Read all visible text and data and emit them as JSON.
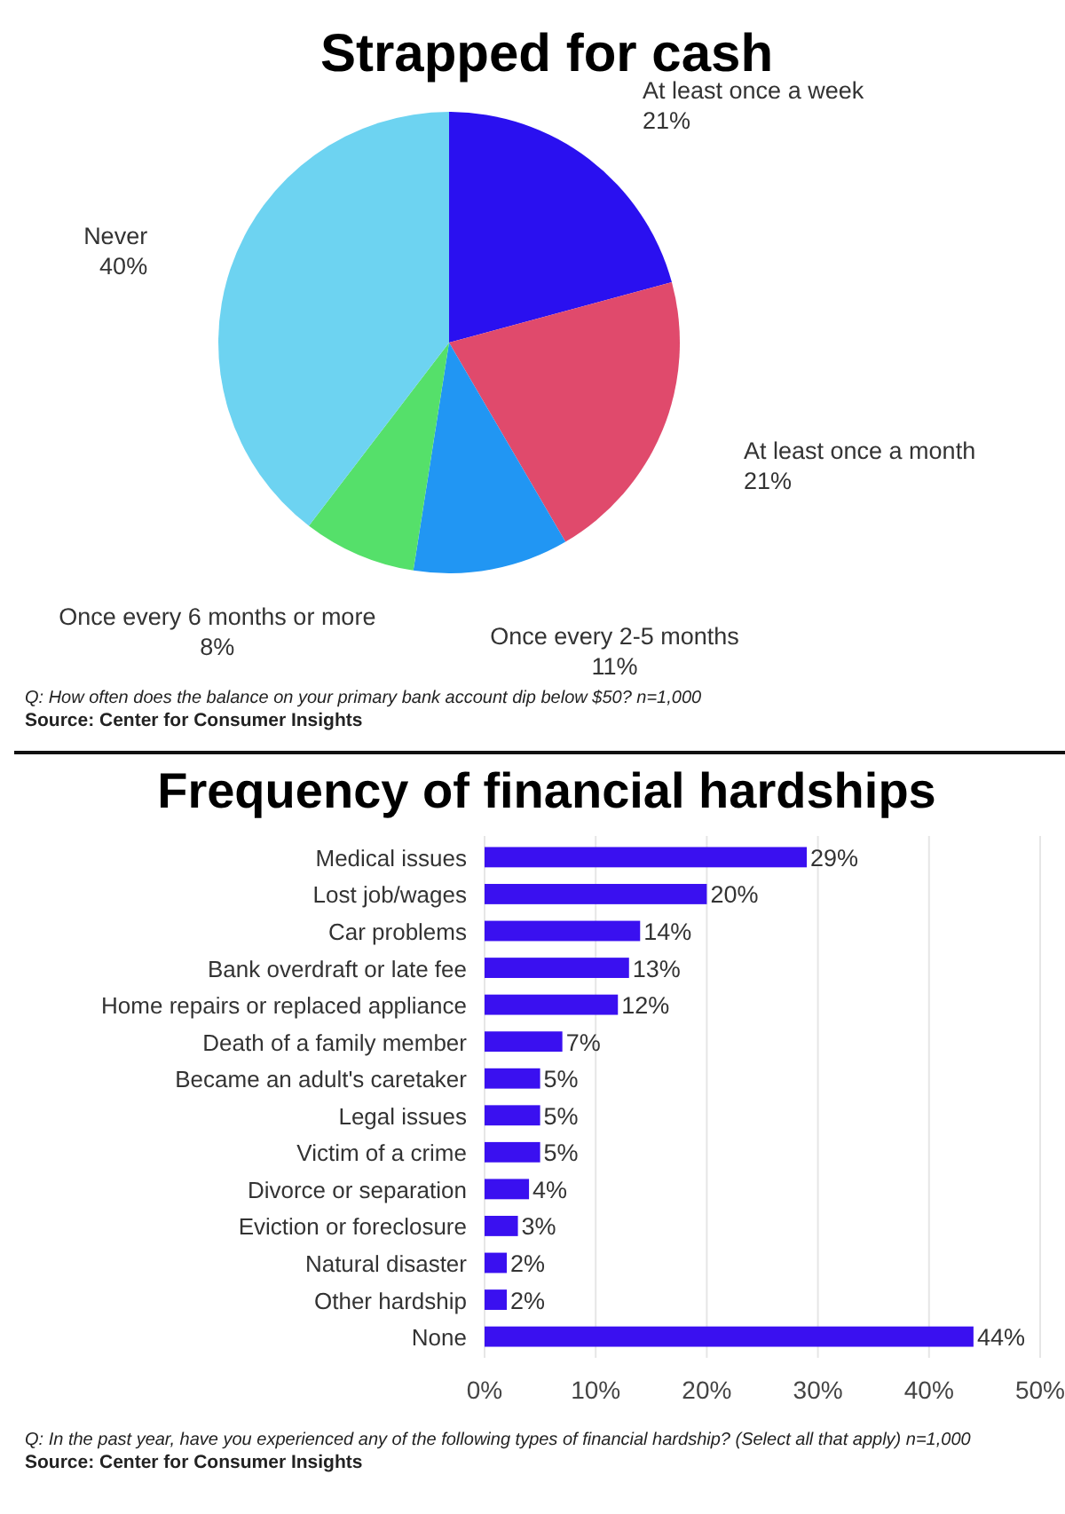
{
  "chart_data": [
    {
      "type": "pie",
      "title": "Strapped for cash",
      "categories": [
        "At least once a week",
        "At least once a month",
        "Once every 2-5 months",
        "Once every 6 months or more",
        "Never"
      ],
      "values": [
        21,
        21,
        11,
        8,
        40
      ],
      "colors": [
        "#2a10f0",
        "#e04a6c",
        "#2196f3",
        "#55e06a",
        "#6dd3f1"
      ],
      "value_labels": [
        "21%",
        "21%",
        "11%",
        "8%",
        "40%"
      ],
      "annotations": [
        "Q: How often does the balance on your primary bank account dip below $50? n=1,000",
        "Source: Center for Consumer Insights"
      ]
    },
    {
      "type": "bar",
      "orientation": "horizontal",
      "title": "Frequency of financial hardships",
      "categories": [
        "Medical issues",
        "Lost job/wages",
        "Car problems",
        "Bank overdraft or late fee",
        "Home repairs or replaced appliance",
        "Death of a family member",
        "Became an adult's caretaker",
        "Legal issues",
        "Victim of a crime",
        "Divorce or separation",
        "Eviction or foreclosure",
        "Natural disaster",
        "Other hardship",
        "None"
      ],
      "values": [
        29,
        20,
        14,
        13,
        12,
        7,
        5,
        5,
        5,
        4,
        3,
        2,
        2,
        44
      ],
      "color": "#3a10f0",
      "xlim": [
        0,
        50
      ],
      "xticks": [
        {
          "value": 0,
          "label": "0%"
        },
        {
          "value": 10,
          "label": "10%"
        },
        {
          "value": 20,
          "label": "20%"
        },
        {
          "value": 30,
          "label": "30%"
        },
        {
          "value": 40,
          "label": "40%"
        },
        {
          "value": 50,
          "label": "50%"
        }
      ],
      "grid": "x",
      "value_labels": [
        "29%",
        "20%",
        "14%",
        "13%",
        "12%",
        "7%",
        "5%",
        "5%",
        "5%",
        "4%",
        "3%",
        "2%",
        "2%",
        "44%"
      ],
      "annotations": [
        "Q: In the past year, have you experienced any of the following types of financial hardship? (Select all that apply) n=1,000",
        "Source: Center for Consumer Insights"
      ]
    }
  ]
}
